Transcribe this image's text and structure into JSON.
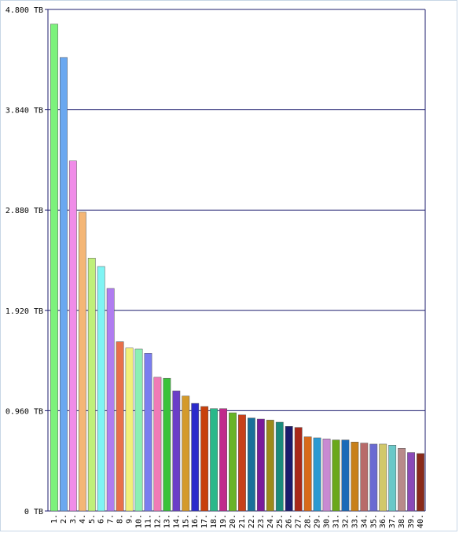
{
  "chart_data": {
    "type": "bar",
    "unit": "TB",
    "ylim": [
      0,
      4.8
    ],
    "y_ticks": [
      "0 TB",
      "0.960 TB",
      "1.920 TB",
      "2.880 TB",
      "3.840 TB",
      "4.800 TB"
    ],
    "y_tick_values": [
      0,
      0.96,
      1.92,
      2.88,
      3.84,
      4.8
    ],
    "grid": true,
    "categories": [
      "1.",
      "2.",
      "3.",
      "4.",
      "5.",
      "6.",
      "7.",
      "8.",
      "9.",
      "10.",
      "11.",
      "12.",
      "13.",
      "14.",
      "15.",
      "16.",
      "17.",
      "18.",
      "19.",
      "20.",
      "21.",
      "22.",
      "23.",
      "24.",
      "25.",
      "26.",
      "27.",
      "28.",
      "29.",
      "30.",
      "31.",
      "32.",
      "33.",
      "34.",
      "35.",
      "36.",
      "37.",
      "38.",
      "39.",
      "40."
    ],
    "values": [
      4.66,
      4.34,
      3.35,
      2.86,
      2.42,
      2.34,
      2.13,
      1.62,
      1.56,
      1.55,
      1.51,
      1.28,
      1.27,
      1.15,
      1.1,
      1.03,
      1.0,
      0.98,
      0.98,
      0.94,
      0.92,
      0.89,
      0.88,
      0.87,
      0.85,
      0.81,
      0.8,
      0.71,
      0.7,
      0.69,
      0.68,
      0.68,
      0.66,
      0.65,
      0.64,
      0.64,
      0.63,
      0.6,
      0.56,
      0.55
    ],
    "colors": [
      "#7cf27c",
      "#6aa8f0",
      "#f08ce8",
      "#f4b676",
      "#bff07a",
      "#7ff4f4",
      "#b07cf0",
      "#e8704a",
      "#f2f07a",
      "#8cf0b4",
      "#7a7ef0",
      "#f07ab6",
      "#3ac23a",
      "#6a3ec8",
      "#d49a2a",
      "#2a2acb",
      "#c8400c",
      "#2ab88a",
      "#c02a8c",
      "#68b428",
      "#c8401a",
      "#1a709a",
      "#7a1a9a",
      "#9c8a1a",
      "#1a8a7c",
      "#1a1a6c",
      "#a8281a",
      "#d86a1a",
      "#2a9ad2",
      "#c88ad2",
      "#6aa81a",
      "#1a6ab8",
      "#c8801a",
      "#b86a6a",
      "#6a6ad2",
      "#d2c86a",
      "#6ac8c8",
      "#b88a8a",
      "#8a4ab8",
      "#8a2a1a"
    ]
  }
}
